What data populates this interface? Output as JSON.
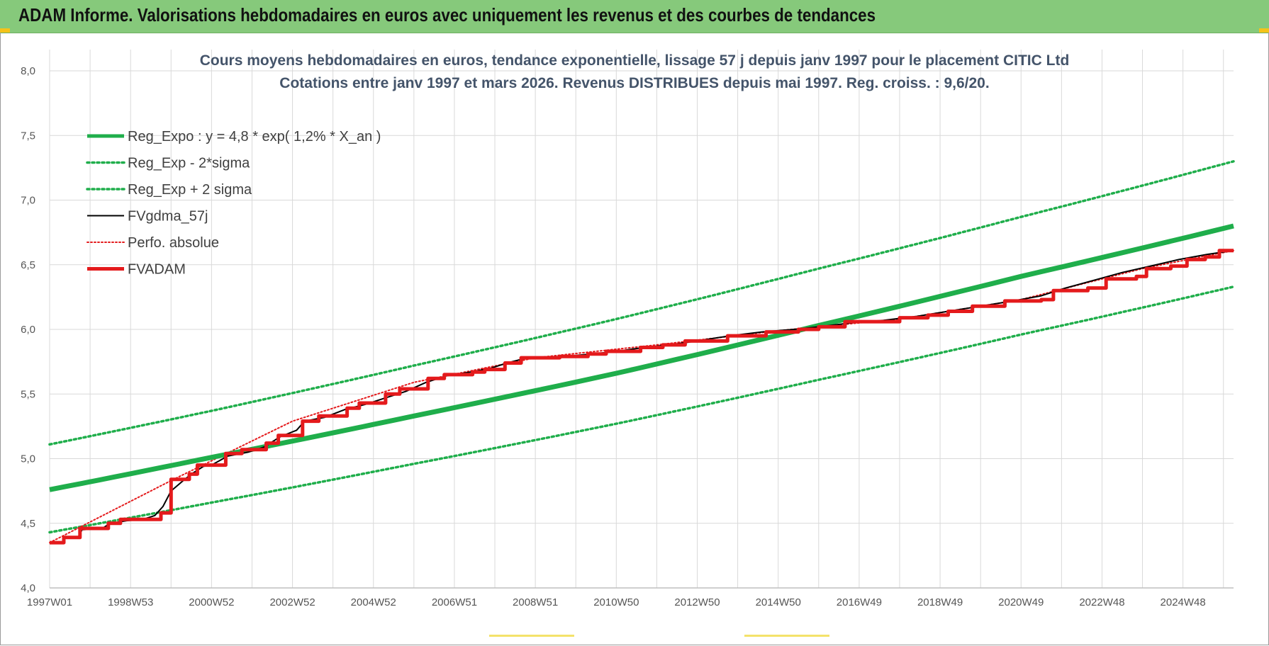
{
  "banner": {
    "title": "ADAM Informe. Valorisations hebdomadaires en euros avec uniquement les revenus et des courbes de tendances"
  },
  "colors": {
    "banner": "#86c97b",
    "reg_green": "#1fae4b",
    "fv_red": "#e41a1c",
    "fv_black": "#000000",
    "grid": "#d9d9d9"
  },
  "chart_data": {
    "type": "line",
    "title_line1": "Cours moyens hebdomadaires en euros, tendance exponentielle, lissage 57 j depuis janv 1997 pour le placement CITIC Ltd",
    "title_line2": "Cotations entre janv 1997 et mars 2026. Revenus DISTRIBUES depuis mai 1997. Reg. croiss. : 9,6/20.",
    "xlabel": "",
    "ylabel": "",
    "ylim": [
      4.0,
      8.0
    ],
    "xlim": [
      1997.0,
      2026.25
    ],
    "y_ticks": [
      "4,0",
      "4,5",
      "5,0",
      "5,5",
      "6,0",
      "6,5",
      "7,0",
      "7,5",
      "8,0"
    ],
    "x_ticks": [
      {
        "label": "1997W01",
        "x": 1997.0
      },
      {
        "label": "1998W53",
        "x": 1999.0
      },
      {
        "label": "2000W52",
        "x": 2001.0
      },
      {
        "label": "2002W52",
        "x": 2003.0
      },
      {
        "label": "2004W52",
        "x": 2005.0
      },
      {
        "label": "2006W51",
        "x": 2007.0
      },
      {
        "label": "2008W51",
        "x": 2009.0
      },
      {
        "label": "2010W50",
        "x": 2011.0
      },
      {
        "label": "2012W50",
        "x": 2013.0
      },
      {
        "label": "2014W50",
        "x": 2015.0
      },
      {
        "label": "2016W49",
        "x": 2017.0
      },
      {
        "label": "2018W49",
        "x": 2019.0
      },
      {
        "label": "2020W49",
        "x": 2021.0
      },
      {
        "label": "2022W48",
        "x": 2023.0
      },
      {
        "label": "2024W48",
        "x": 2025.0
      }
    ],
    "grid": true,
    "legend_position": "top-left",
    "series": [
      {
        "name": "Reg_Expo : y = 4,8 * exp( 1,2% *  X_an )",
        "style": "thick-solid",
        "color": "#1fae4b",
        "points": [
          [
            1997.0,
            4.76
          ],
          [
            2001.0,
            5.01
          ],
          [
            2006.0,
            5.33
          ],
          [
            2011.0,
            5.66
          ],
          [
            2016.0,
            6.03
          ],
          [
            2021.0,
            6.41
          ],
          [
            2026.25,
            6.8
          ]
        ]
      },
      {
        "name": "Reg_Exp - 2*sigma",
        "style": "dotted",
        "color": "#1fae4b",
        "points": [
          [
            1997.0,
            4.43
          ],
          [
            2001.0,
            4.66
          ],
          [
            2006.0,
            4.96
          ],
          [
            2011.0,
            5.27
          ],
          [
            2016.0,
            5.61
          ],
          [
            2021.0,
            5.96
          ],
          [
            2026.25,
            6.33
          ]
        ]
      },
      {
        "name": "Reg_Exp + 2 sigma",
        "style": "dotted",
        "color": "#1fae4b",
        "points": [
          [
            1997.0,
            5.11
          ],
          [
            2001.0,
            5.37
          ],
          [
            2006.0,
            5.72
          ],
          [
            2011.0,
            6.08
          ],
          [
            2016.0,
            6.47
          ],
          [
            2021.0,
            6.87
          ],
          [
            2026.25,
            7.3
          ]
        ]
      },
      {
        "name": "FVgdma_57j",
        "style": "thin-solid",
        "color": "#000000",
        "points": [
          [
            1997.0,
            4.35
          ],
          [
            1997.3,
            4.35
          ],
          [
            1997.4,
            4.39
          ],
          [
            1997.7,
            4.39
          ],
          [
            1997.8,
            4.45
          ],
          [
            1998.3,
            4.46
          ],
          [
            1998.5,
            4.5
          ],
          [
            1998.9,
            4.52
          ],
          [
            1999.3,
            4.53
          ],
          [
            1999.6,
            4.56
          ],
          [
            1999.8,
            4.63
          ],
          [
            2000.0,
            4.75
          ],
          [
            2000.3,
            4.83
          ],
          [
            2000.5,
            4.88
          ],
          [
            2000.8,
            4.94
          ],
          [
            2001.0,
            4.95
          ],
          [
            2001.4,
            5.02
          ],
          [
            2001.9,
            5.05
          ],
          [
            2002.3,
            5.09
          ],
          [
            2002.7,
            5.17
          ],
          [
            2003.1,
            5.22
          ],
          [
            2003.3,
            5.29
          ],
          [
            2003.8,
            5.32
          ],
          [
            2004.3,
            5.38
          ],
          [
            2004.8,
            5.42
          ],
          [
            2005.3,
            5.47
          ],
          [
            2005.8,
            5.52
          ],
          [
            2006.3,
            5.59
          ],
          [
            2006.8,
            5.64
          ],
          [
            2007.4,
            5.67
          ],
          [
            2007.9,
            5.7
          ],
          [
            2008.3,
            5.74
          ],
          [
            2008.8,
            5.78
          ],
          [
            2009.7,
            5.79
          ],
          [
            2010.4,
            5.81
          ],
          [
            2011.0,
            5.83
          ],
          [
            2011.7,
            5.86
          ],
          [
            2012.3,
            5.88
          ],
          [
            2013.0,
            5.91
          ],
          [
            2013.8,
            5.95
          ],
          [
            2014.6,
            5.98
          ],
          [
            2015.4,
            6.0
          ],
          [
            2016.0,
            6.02
          ],
          [
            2016.8,
            6.05
          ],
          [
            2017.6,
            6.07
          ],
          [
            2018.4,
            6.1
          ],
          [
            2019.2,
            6.14
          ],
          [
            2020.0,
            6.18
          ],
          [
            2020.8,
            6.22
          ],
          [
            2021.5,
            6.26
          ],
          [
            2022.1,
            6.32
          ],
          [
            2022.8,
            6.38
          ],
          [
            2023.5,
            6.44
          ],
          [
            2024.2,
            6.49
          ],
          [
            2024.9,
            6.54
          ],
          [
            2025.6,
            6.58
          ],
          [
            2026.25,
            6.61
          ]
        ]
      },
      {
        "name": "Perfo. absolue",
        "style": "dotted",
        "color": "#e41a1c",
        "points": [
          [
            1997.0,
            4.35
          ],
          [
            2000.0,
            4.83
          ],
          [
            2003.0,
            5.29
          ],
          [
            2006.0,
            5.59
          ],
          [
            2009.0,
            5.78
          ],
          [
            2012.0,
            5.88
          ],
          [
            2015.0,
            5.99
          ],
          [
            2018.0,
            6.08
          ],
          [
            2021.0,
            6.23
          ],
          [
            2024.0,
            6.47
          ],
          [
            2026.25,
            6.61
          ]
        ]
      },
      {
        "name": "FVADAM",
        "style": "thick-step",
        "color": "#e41a1c",
        "steps": [
          [
            1997.0,
            4.35
          ],
          [
            1997.35,
            4.39
          ],
          [
            1997.75,
            4.46
          ],
          [
            1998.45,
            4.5
          ],
          [
            1998.75,
            4.53
          ],
          [
            1999.75,
            4.58
          ],
          [
            2000.0,
            4.84
          ],
          [
            2000.45,
            4.88
          ],
          [
            2000.65,
            4.95
          ],
          [
            2001.35,
            5.04
          ],
          [
            2001.75,
            5.07
          ],
          [
            2002.35,
            5.12
          ],
          [
            2002.65,
            5.18
          ],
          [
            2003.25,
            5.29
          ],
          [
            2003.65,
            5.33
          ],
          [
            2004.35,
            5.39
          ],
          [
            2004.65,
            5.43
          ],
          [
            2005.3,
            5.5
          ],
          [
            2005.65,
            5.54
          ],
          [
            2006.35,
            5.62
          ],
          [
            2006.75,
            5.65
          ],
          [
            2007.45,
            5.67
          ],
          [
            2007.75,
            5.69
          ],
          [
            2008.25,
            5.74
          ],
          [
            2008.65,
            5.78
          ],
          [
            2009.6,
            5.79
          ],
          [
            2010.3,
            5.81
          ],
          [
            2010.75,
            5.83
          ],
          [
            2011.6,
            5.86
          ],
          [
            2012.15,
            5.88
          ],
          [
            2012.7,
            5.91
          ],
          [
            2013.75,
            5.95
          ],
          [
            2014.7,
            5.98
          ],
          [
            2015.5,
            6.0
          ],
          [
            2016.0,
            6.02
          ],
          [
            2016.65,
            6.06
          ],
          [
            2017.7,
            6.06
          ],
          [
            2018.0,
            6.09
          ],
          [
            2018.7,
            6.11
          ],
          [
            2019.2,
            6.14
          ],
          [
            2019.8,
            6.18
          ],
          [
            2020.6,
            6.22
          ],
          [
            2021.5,
            6.23
          ],
          [
            2021.8,
            6.3
          ],
          [
            2022.65,
            6.32
          ],
          [
            2023.1,
            6.39
          ],
          [
            2023.85,
            6.41
          ],
          [
            2024.1,
            6.47
          ],
          [
            2024.7,
            6.49
          ],
          [
            2025.1,
            6.54
          ],
          [
            2025.55,
            6.56
          ],
          [
            2025.9,
            6.61
          ],
          [
            2026.25,
            6.61
          ]
        ]
      }
    ]
  }
}
